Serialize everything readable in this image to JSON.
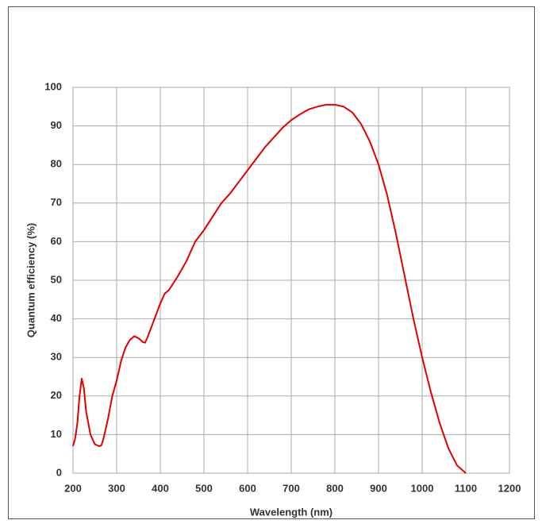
{
  "chart_data": {
    "type": "line",
    "x_label": "Wavelength (nm)",
    "y_label": "Quantum efficiency (%)",
    "x": [
      200,
      205,
      210,
      215,
      220,
      225,
      230,
      240,
      250,
      260,
      265,
      270,
      280,
      290,
      300,
      310,
      320,
      330,
      340,
      350,
      360,
      365,
      370,
      380,
      390,
      400,
      410,
      420,
      440,
      460,
      480,
      500,
      520,
      540,
      560,
      580,
      600,
      620,
      640,
      660,
      680,
      700,
      720,
      740,
      760,
      780,
      800,
      820,
      840,
      860,
      880,
      900,
      920,
      940,
      960,
      980,
      1000,
      1020,
      1040,
      1060,
      1080,
      1100
    ],
    "series": [
      {
        "color": "#e00000",
        "values": [
          7,
          9,
          13,
          20,
          24.5,
          22,
          16,
          10,
          7.5,
          7,
          7.2,
          9,
          14,
          20,
          24,
          29,
          32.5,
          34.5,
          35.5,
          35,
          34,
          33.8,
          35,
          38,
          41,
          44,
          46.5,
          47.5,
          51,
          55,
          60,
          63,
          66.5,
          70,
          72.5,
          75.5,
          78.5,
          81.5,
          84.5,
          87,
          89.5,
          91.5,
          93,
          94.3,
          95,
          95.5,
          95.5,
          95,
          93.5,
          90.5,
          86,
          80,
          72,
          62,
          51,
          40,
          30,
          21,
          13,
          6.5,
          2,
          0
        ]
      }
    ],
    "xlim": [
      200,
      1200
    ],
    "xticks": [
      200,
      300,
      400,
      500,
      600,
      700,
      800,
      900,
      1000,
      1100,
      1200
    ],
    "ylim": [
      0,
      100
    ],
    "yticks": [
      0,
      10,
      20,
      30,
      40,
      50,
      60,
      70,
      80,
      90,
      100
    ],
    "grid": true
  }
}
